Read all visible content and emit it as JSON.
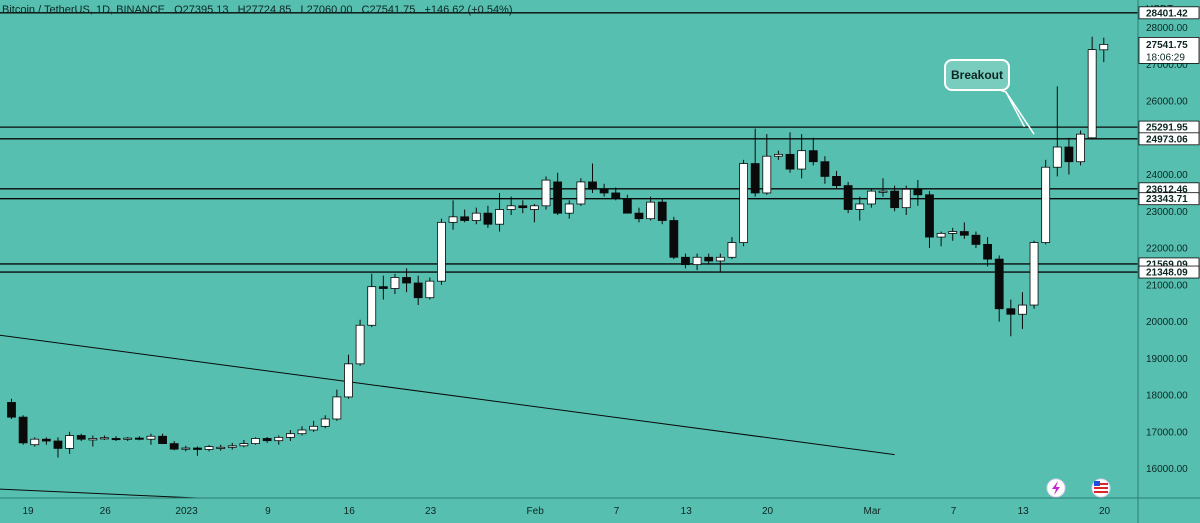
{
  "header": {
    "symbol": "Bitcoin / TetherUS, 1D, BINANCE",
    "open": "O27395.13",
    "high": "H27724.85",
    "low": "L27060.00",
    "close": "C27541.75",
    "change": "+146.62 (+0.54%)"
  },
  "currency": "USDT",
  "countdown": "18:06:29",
  "colors": {
    "background": "#56bfb0",
    "up": "#ffffff",
    "down": "#0a0a0a",
    "line": "#0a0a0a",
    "text": "#0c2622",
    "tag_bg": "#ffffff"
  },
  "chart_data": {
    "type": "candlestick",
    "y_ticks": [
      16000,
      17000,
      18000,
      19000,
      20000,
      21000,
      22000,
      23000,
      24000,
      25000,
      26000,
      27000,
      28000
    ],
    "y_tick_labels": [
      "16000.00",
      "17000.00",
      "18000.00",
      "19000.00",
      "20000.00",
      "21000.00",
      "22000.00",
      "23000.00",
      "24000.00",
      "25000.00",
      "26000.00",
      "27000.00",
      "28000.00"
    ],
    "ylim": [
      15200,
      28750
    ],
    "x_labels": [
      "19",
      "26",
      "2023",
      "9",
      "16",
      "23",
      "Feb",
      "7",
      "13",
      "20",
      "Mar",
      "7",
      "13",
      "20"
    ],
    "x_label_index": [
      -1,
      6,
      13,
      20,
      27,
      34,
      43,
      50,
      56,
      63,
      72,
      79,
      85,
      92
    ],
    "horizontal_levels": [
      {
        "value": 28401.42,
        "label": "28401.42"
      },
      {
        "value": 25291.95,
        "label": "25291.95"
      },
      {
        "value": 24973.06,
        "label": "24973.06"
      },
      {
        "value": 23612.46,
        "label": "23612.46"
      },
      {
        "value": 23343.71,
        "label": "23343.71"
      },
      {
        "value": 21569.09,
        "label": "21569.09"
      },
      {
        "value": 21348.09,
        "label": "21348.09"
      }
    ],
    "last_price": {
      "value": 27541.75,
      "label": "27541.75"
    },
    "annotations": [
      {
        "text": "Breakout"
      }
    ],
    "trendlines": [
      {
        "from": [
          -1,
          19630
        ],
        "to": [
          76,
          16380
        ]
      },
      {
        "from": [
          -1,
          15440
        ],
        "to": [
          16,
          15200
        ]
      }
    ],
    "candles": [
      {
        "o": 17800,
        "h": 17900,
        "l": 17350,
        "c": 17400
      },
      {
        "o": 17400,
        "h": 17450,
        "l": 16650,
        "c": 16700
      },
      {
        "o": 16650,
        "h": 16850,
        "l": 16600,
        "c": 16800
      },
      {
        "o": 16800,
        "h": 16850,
        "l": 16650,
        "c": 16750
      },
      {
        "o": 16750,
        "h": 16850,
        "l": 16300,
        "c": 16550
      },
      {
        "o": 16550,
        "h": 17000,
        "l": 16400,
        "c": 16900
      },
      {
        "o": 16900,
        "h": 16950,
        "l": 16750,
        "c": 16800
      },
      {
        "o": 16780,
        "h": 16900,
        "l": 16600,
        "c": 16820
      },
      {
        "o": 16820,
        "h": 16900,
        "l": 16780,
        "c": 16840
      },
      {
        "o": 16820,
        "h": 16880,
        "l": 16750,
        "c": 16800
      },
      {
        "o": 16800,
        "h": 16860,
        "l": 16750,
        "c": 16830
      },
      {
        "o": 16830,
        "h": 16880,
        "l": 16770,
        "c": 16800
      },
      {
        "o": 16800,
        "h": 16950,
        "l": 16650,
        "c": 16880
      },
      {
        "o": 16880,
        "h": 16950,
        "l": 16700,
        "c": 16680
      },
      {
        "o": 16680,
        "h": 16750,
        "l": 16500,
        "c": 16530
      },
      {
        "o": 16530,
        "h": 16620,
        "l": 16470,
        "c": 16560
      },
      {
        "o": 16560,
        "h": 16600,
        "l": 16350,
        "c": 16520
      },
      {
        "o": 16520,
        "h": 16640,
        "l": 16470,
        "c": 16600
      },
      {
        "o": 16550,
        "h": 16650,
        "l": 16490,
        "c": 16580
      },
      {
        "o": 16580,
        "h": 16700,
        "l": 16520,
        "c": 16620
      },
      {
        "o": 16620,
        "h": 16780,
        "l": 16580,
        "c": 16680
      },
      {
        "o": 16680,
        "h": 16850,
        "l": 16650,
        "c": 16820
      },
      {
        "o": 16820,
        "h": 16860,
        "l": 16700,
        "c": 16760
      },
      {
        "o": 16760,
        "h": 16900,
        "l": 16650,
        "c": 16850
      },
      {
        "o": 16850,
        "h": 17050,
        "l": 16750,
        "c": 16950
      },
      {
        "o": 16950,
        "h": 17150,
        "l": 16900,
        "c": 17050
      },
      {
        "o": 17050,
        "h": 17300,
        "l": 17000,
        "c": 17150
      },
      {
        "o": 17150,
        "h": 17450,
        "l": 17100,
        "c": 17350
      },
      {
        "o": 17350,
        "h": 18150,
        "l": 17300,
        "c": 17950
      },
      {
        "o": 17950,
        "h": 19100,
        "l": 17900,
        "c": 18850
      },
      {
        "o": 18850,
        "h": 20050,
        "l": 18800,
        "c": 19900
      },
      {
        "o": 19900,
        "h": 21300,
        "l": 19850,
        "c": 20950
      },
      {
        "o": 20950,
        "h": 21250,
        "l": 20600,
        "c": 20900
      },
      {
        "o": 20900,
        "h": 21300,
        "l": 20750,
        "c": 21200
      },
      {
        "o": 21200,
        "h": 21450,
        "l": 20800,
        "c": 21050
      },
      {
        "o": 21050,
        "h": 21250,
        "l": 20450,
        "c": 20650
      },
      {
        "o": 20650,
        "h": 21200,
        "l": 20600,
        "c": 21100
      },
      {
        "o": 21100,
        "h": 22800,
        "l": 21000,
        "c": 22700
      },
      {
        "o": 22700,
        "h": 23300,
        "l": 22500,
        "c": 22850
      },
      {
        "o": 22850,
        "h": 23050,
        "l": 22700,
        "c": 22750
      },
      {
        "o": 22750,
        "h": 23100,
        "l": 22650,
        "c": 22950
      },
      {
        "o": 22950,
        "h": 23150,
        "l": 22550,
        "c": 22650
      },
      {
        "o": 22650,
        "h": 23500,
        "l": 22450,
        "c": 23050
      },
      {
        "o": 23050,
        "h": 23400,
        "l": 22900,
        "c": 23150
      },
      {
        "o": 23150,
        "h": 23300,
        "l": 22950,
        "c": 23100
      },
      {
        "o": 23050,
        "h": 23200,
        "l": 22700,
        "c": 23150
      },
      {
        "o": 23150,
        "h": 23950,
        "l": 23050,
        "c": 23850
      },
      {
        "o": 23800,
        "h": 24050,
        "l": 22900,
        "c": 22950
      },
      {
        "o": 22950,
        "h": 23300,
        "l": 22800,
        "c": 23200
      },
      {
        "o": 23200,
        "h": 23900,
        "l": 23150,
        "c": 23800
      },
      {
        "o": 23800,
        "h": 24300,
        "l": 23500,
        "c": 23600
      },
      {
        "o": 23600,
        "h": 23750,
        "l": 23400,
        "c": 23500
      },
      {
        "o": 23500,
        "h": 23650,
        "l": 23300,
        "c": 23350
      },
      {
        "o": 23350,
        "h": 23450,
        "l": 22950,
        "c": 22950
      },
      {
        "o": 22950,
        "h": 23100,
        "l": 22700,
        "c": 22800
      },
      {
        "o": 22800,
        "h": 23400,
        "l": 22750,
        "c": 23250
      },
      {
        "o": 23250,
        "h": 23350,
        "l": 22650,
        "c": 22750
      },
      {
        "o": 22750,
        "h": 22850,
        "l": 21700,
        "c": 21750
      },
      {
        "o": 21750,
        "h": 21850,
        "l": 21450,
        "c": 21550
      },
      {
        "o": 21550,
        "h": 21850,
        "l": 21400,
        "c": 21750
      },
      {
        "o": 21750,
        "h": 21850,
        "l": 21550,
        "c": 21650
      },
      {
        "o": 21650,
        "h": 21850,
        "l": 21350,
        "c": 21750
      },
      {
        "o": 21750,
        "h": 22300,
        "l": 21700,
        "c": 22150
      },
      {
        "o": 22150,
        "h": 24400,
        "l": 22050,
        "c": 24300
      },
      {
        "o": 24300,
        "h": 25250,
        "l": 23400,
        "c": 23500
      },
      {
        "o": 23500,
        "h": 25100,
        "l": 23450,
        "c": 24500
      },
      {
        "o": 24500,
        "h": 24650,
        "l": 24400,
        "c": 24550
      },
      {
        "o": 24550,
        "h": 25150,
        "l": 24050,
        "c": 24150
      },
      {
        "o": 24150,
        "h": 25100,
        "l": 23900,
        "c": 24650
      },
      {
        "o": 24650,
        "h": 25000,
        "l": 24250,
        "c": 24350
      },
      {
        "o": 24350,
        "h": 24500,
        "l": 23750,
        "c": 23950
      },
      {
        "o": 23950,
        "h": 24100,
        "l": 23600,
        "c": 23700
      },
      {
        "o": 23700,
        "h": 23800,
        "l": 22950,
        "c": 23050
      },
      {
        "o": 23050,
        "h": 23400,
        "l": 22750,
        "c": 23200
      },
      {
        "o": 23200,
        "h": 23600,
        "l": 23100,
        "c": 23550
      },
      {
        "o": 23550,
        "h": 23900,
        "l": 23400,
        "c": 23550
      },
      {
        "o": 23550,
        "h": 23700,
        "l": 23000,
        "c": 23100
      },
      {
        "o": 23100,
        "h": 23700,
        "l": 22900,
        "c": 23600
      },
      {
        "o": 23600,
        "h": 23850,
        "l": 23150,
        "c": 23450
      },
      {
        "o": 23450,
        "h": 23550,
        "l": 22000,
        "c": 22300
      },
      {
        "o": 22300,
        "h": 22450,
        "l": 22050,
        "c": 22400
      },
      {
        "o": 22400,
        "h": 22550,
        "l": 22200,
        "c": 22450
      },
      {
        "o": 22450,
        "h": 22700,
        "l": 22250,
        "c": 22350
      },
      {
        "o": 22350,
        "h": 22450,
        "l": 22000,
        "c": 22100
      },
      {
        "o": 22100,
        "h": 22300,
        "l": 21500,
        "c": 21700
      },
      {
        "o": 21700,
        "h": 21800,
        "l": 20000,
        "c": 20350
      },
      {
        "o": 20350,
        "h": 20600,
        "l": 19600,
        "c": 20200
      },
      {
        "o": 20200,
        "h": 20800,
        "l": 19800,
        "c": 20450
      },
      {
        "o": 20450,
        "h": 22200,
        "l": 20350,
        "c": 22150
      },
      {
        "o": 22150,
        "h": 24400,
        "l": 22100,
        "c": 24200
      },
      {
        "o": 24200,
        "h": 26400,
        "l": 23950,
        "c": 24750
      },
      {
        "o": 24750,
        "h": 25000,
        "l": 24000,
        "c": 24350
      },
      {
        "o": 24350,
        "h": 25200,
        "l": 24250,
        "c": 25100
      },
      {
        "o": 25000,
        "h": 27750,
        "l": 24950,
        "c": 27400
      },
      {
        "o": 27395,
        "h": 27725,
        "l": 27060,
        "c": 27542
      }
    ]
  }
}
